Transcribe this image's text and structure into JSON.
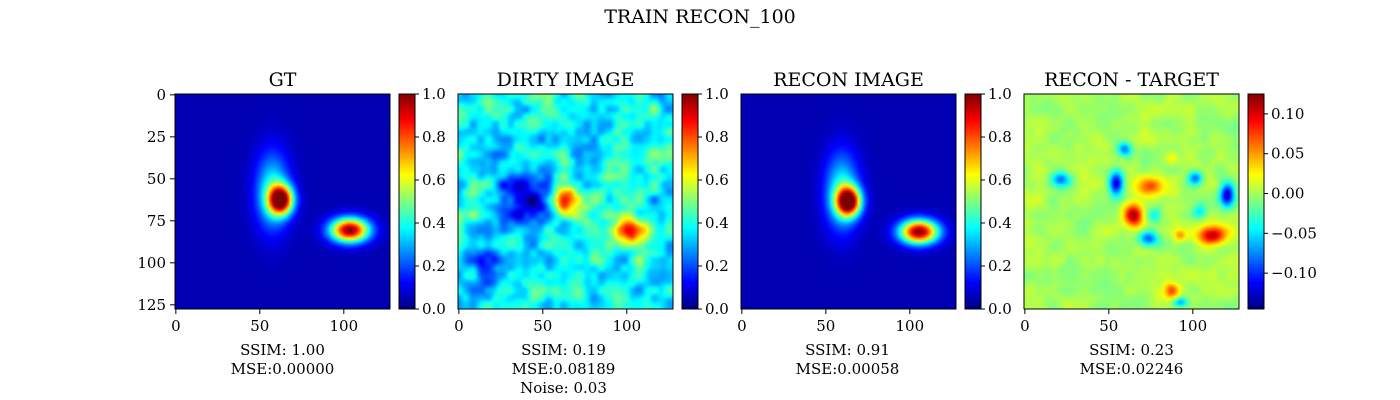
{
  "suptitle": "TRAIN RECON_100",
  "colormap": "jet",
  "jet_stops": [
    "#00007f",
    "#0000ff",
    "#007fff",
    "#00ffff",
    "#7fff7f",
    "#ffff00",
    "#ff7f00",
    "#ff0000",
    "#7f0000"
  ],
  "chart_data": [
    {
      "type": "heatmap",
      "title": "GT",
      "image_size": 128,
      "xticks": [
        0,
        50,
        100
      ],
      "yticks": [
        0,
        25,
        50,
        75,
        100,
        125
      ],
      "show_yticks": true,
      "clim": [
        0,
        1
      ],
      "colorbar_ticks": [
        "0.0",
        "0.2",
        "0.4",
        "0.6",
        "0.8",
        "1.0"
      ],
      "colorbar_tick_values": [
        0,
        0.2,
        0.4,
        0.6,
        0.8,
        1.0
      ],
      "background": 0.05,
      "blobs": [
        {
          "x": 63,
          "y": 63,
          "peak": 0.95,
          "sx": 5,
          "sy": 6
        },
        {
          "x": 58,
          "y": 58,
          "peak": 0.35,
          "sx": 7,
          "sy": 16
        },
        {
          "x": 104,
          "y": 81,
          "peak": 0.95,
          "sx": 8,
          "sy": 5
        }
      ],
      "caption": [
        "SSIM: 1.00",
        "MSE:0.00000"
      ]
    },
    {
      "type": "heatmap",
      "title": "DIRTY IMAGE",
      "image_size": 128,
      "xticks": [
        0,
        50,
        100
      ],
      "yticks": [],
      "show_yticks": false,
      "clim": [
        0,
        1
      ],
      "colorbar_ticks": [
        "0.0",
        "0.2",
        "0.4",
        "0.6",
        "0.8",
        "1.0"
      ],
      "colorbar_tick_values": [
        0,
        0.2,
        0.4,
        0.6,
        0.8,
        1.0
      ],
      "background": 0.38,
      "noise": 0.1,
      "blobs": [
        {
          "x": 63,
          "y": 63,
          "peak": 0.55,
          "sx": 5,
          "sy": 7
        },
        {
          "x": 104,
          "y": 81,
          "peak": 0.55,
          "sx": 8,
          "sy": 5
        },
        {
          "x": 40,
          "y": 62,
          "peak": -0.3,
          "sx": 12,
          "sy": 12
        },
        {
          "x": 15,
          "y": 100,
          "peak": -0.15,
          "sx": 10,
          "sy": 10
        }
      ],
      "caption": [
        "SSIM: 0.19",
        "MSE:0.08189",
        "Noise: 0.03"
      ]
    },
    {
      "type": "heatmap",
      "title": "RECON IMAGE",
      "image_size": 128,
      "xticks": [
        0,
        50,
        100
      ],
      "yticks": [],
      "show_yticks": false,
      "clim": [
        0,
        1
      ],
      "colorbar_ticks": [
        "0.0",
        "0.2",
        "0.4",
        "0.6",
        "0.8",
        "1.0"
      ],
      "colorbar_tick_values": [
        0,
        0.2,
        0.4,
        0.6,
        0.8,
        1.0
      ],
      "background": 0.05,
      "blobs": [
        {
          "x": 64,
          "y": 64,
          "peak": 0.95,
          "sx": 5,
          "sy": 6
        },
        {
          "x": 60,
          "y": 58,
          "peak": 0.35,
          "sx": 7,
          "sy": 16
        },
        {
          "x": 106,
          "y": 82,
          "peak": 0.95,
          "sx": 8,
          "sy": 5
        }
      ],
      "caption": [
        "SSIM: 0.91",
        "MSE:0.00058"
      ]
    },
    {
      "type": "heatmap",
      "title": "RECON - TARGET",
      "image_size": 128,
      "xticks": [
        0,
        50,
        100
      ],
      "yticks": [],
      "show_yticks": false,
      "clim": [
        -0.145,
        0.125
      ],
      "colorbar_ticks": [
        "0.10",
        "0.05",
        "0.00",
        "−0.05",
        "−0.10"
      ],
      "colorbar_tick_values": [
        0.1,
        0.05,
        0.0,
        -0.05,
        -0.1
      ],
      "background": 0.0,
      "noise": 0.008,
      "blobs": [
        {
          "x": 65,
          "y": 72,
          "peak": 0.12,
          "sx": 4,
          "sy": 5
        },
        {
          "x": 75,
          "y": 55,
          "peak": 0.07,
          "sx": 6,
          "sy": 4
        },
        {
          "x": 112,
          "y": 84,
          "peak": 0.11,
          "sx": 6,
          "sy": 4
        },
        {
          "x": 93,
          "y": 84,
          "peak": 0.05,
          "sx": 2.5,
          "sy": 2.5
        },
        {
          "x": 88,
          "y": 117,
          "peak": 0.07,
          "sx": 3,
          "sy": 3
        },
        {
          "x": 88,
          "y": 38,
          "peak": 0.03,
          "sx": 3,
          "sy": 3
        },
        {
          "x": 55,
          "y": 53,
          "peak": -0.12,
          "sx": 3,
          "sy": 5
        },
        {
          "x": 60,
          "y": 33,
          "peak": -0.08,
          "sx": 3,
          "sy": 3
        },
        {
          "x": 74,
          "y": 86,
          "peak": -0.09,
          "sx": 4,
          "sy": 3
        },
        {
          "x": 121,
          "y": 60,
          "peak": -0.12,
          "sx": 3,
          "sy": 5
        },
        {
          "x": 102,
          "y": 50,
          "peak": -0.08,
          "sx": 3,
          "sy": 3
        },
        {
          "x": 22,
          "y": 51,
          "peak": -0.08,
          "sx": 4,
          "sy": 3
        },
        {
          "x": 93,
          "y": 124,
          "peak": -0.07,
          "sx": 3,
          "sy": 2
        },
        {
          "x": 105,
          "y": 70,
          "peak": -0.05,
          "sx": 3,
          "sy": 3
        },
        {
          "x": 78,
          "y": 72,
          "peak": -0.05,
          "sx": 3,
          "sy": 3
        }
      ],
      "caption": [
        "SSIM: 0.23",
        "MSE:0.02246"
      ]
    }
  ]
}
